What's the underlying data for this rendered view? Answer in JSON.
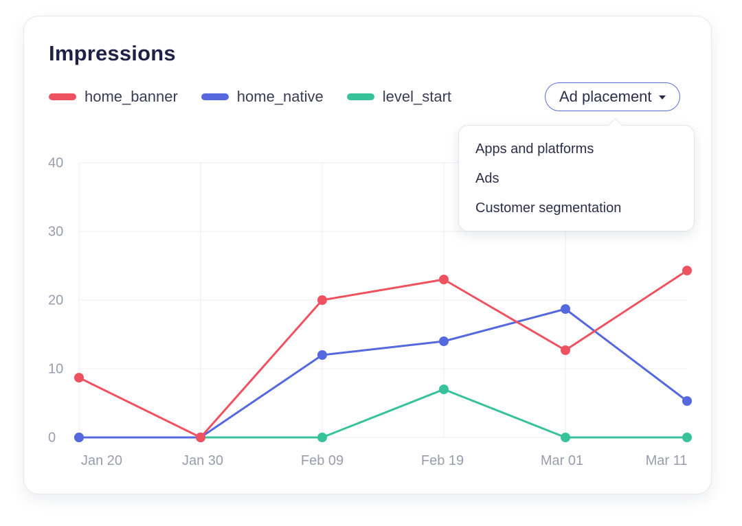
{
  "card": {
    "title": "Impressions"
  },
  "dropdown": {
    "label": "Ad placement",
    "menu_items": [
      "Apps and platforms",
      "Ads",
      "Customer segmentation"
    ]
  },
  "colors": {
    "home_banner": "#ee5260",
    "home_native": "#5668dd",
    "level_start": "#38c29b",
    "grid": "#eceef3",
    "tick": "#9a9cad"
  },
  "chart_data": {
    "type": "line",
    "title": "Impressions",
    "xlabel": "",
    "ylabel": "",
    "ylim": [
      0,
      40
    ],
    "yticks": [
      0,
      10,
      20,
      30,
      40
    ],
    "categories": [
      "Jan 20",
      "Jan 30",
      "Feb 09",
      "Feb 19",
      "Mar 01",
      "Mar 11"
    ],
    "series": [
      {
        "name": "home_banner",
        "color": "#ee5260",
        "values": [
          8.7,
          0,
          20,
          23,
          12.7,
          24.3
        ]
      },
      {
        "name": "home_native",
        "color": "#5668dd",
        "values": [
          0,
          0,
          12,
          14,
          18.7,
          5.3
        ]
      },
      {
        "name": "level_start",
        "color": "#38c29b",
        "values": [
          0,
          0,
          0,
          7,
          0,
          0
        ]
      }
    ],
    "grid": true,
    "legend": "top-left"
  }
}
